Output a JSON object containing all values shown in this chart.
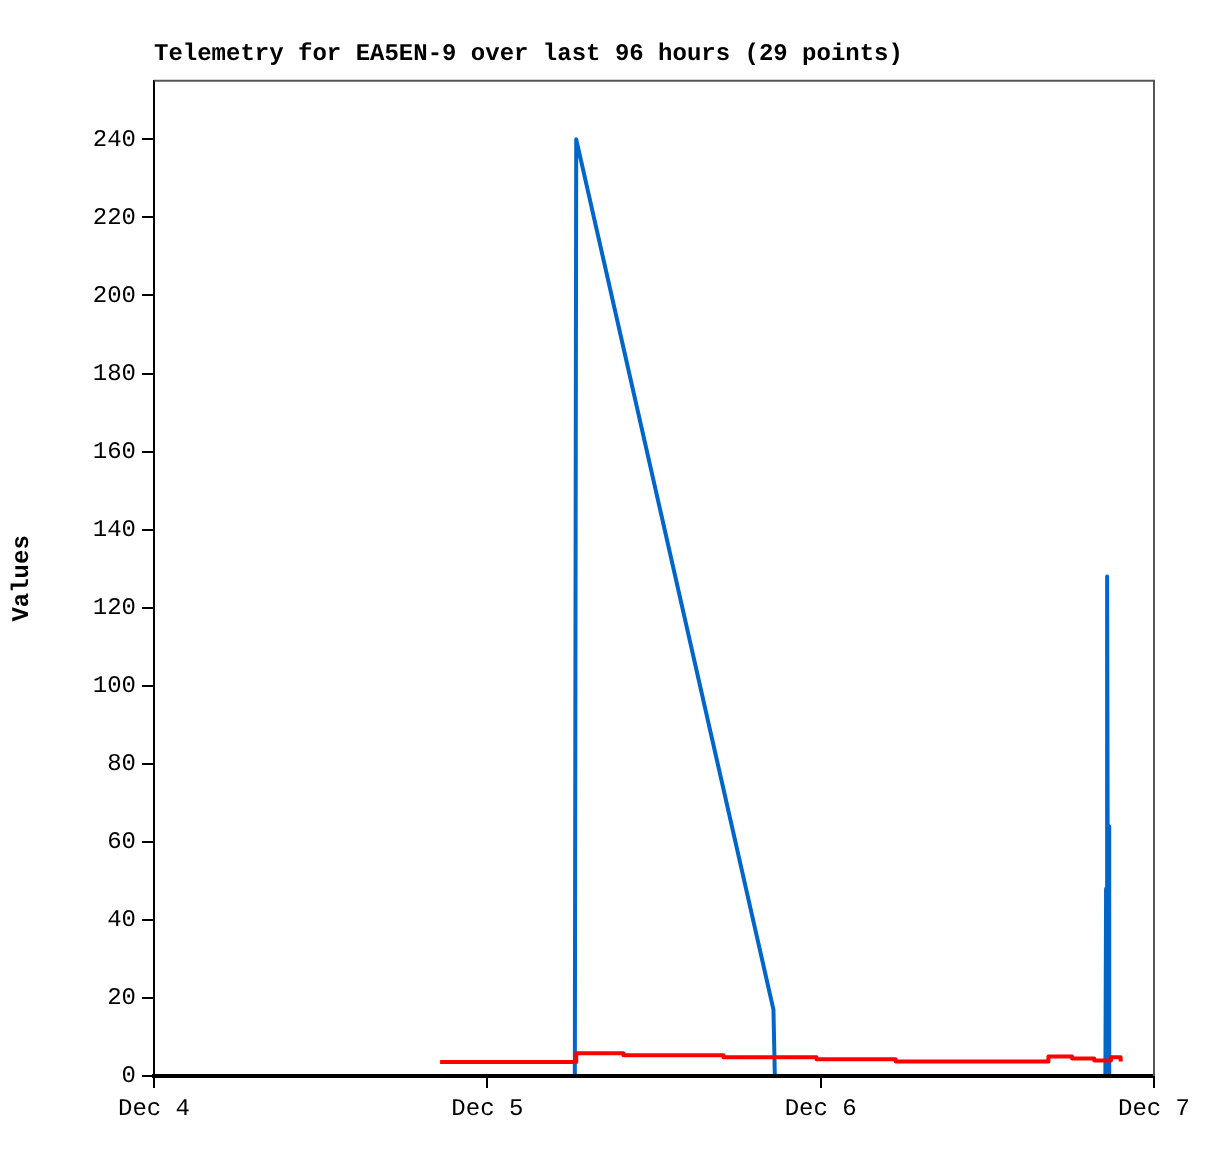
{
  "chart_data": {
    "type": "line",
    "title": "Telemetry for EA5EN-9 over last 96 hours (29 points)",
    "ylabel": "Values",
    "xlim": [
      "--12-04",
      "--12-07"
    ],
    "xticks": [
      {
        "value": "--12-04",
        "label": "Dec 4"
      },
      {
        "value": "--12-05",
        "label": "Dec 5"
      },
      {
        "value": "--12-06",
        "label": "Dec 6"
      },
      {
        "value": "--12-07",
        "label": "Dec 7"
      }
    ],
    "ylim": [
      0,
      255
    ],
    "yticks": [
      0,
      20,
      40,
      60,
      80,
      100,
      120,
      140,
      160,
      180,
      200,
      220,
      240
    ],
    "grid": false,
    "legend": false,
    "marker": "none",
    "line_style": "solid",
    "series": [
      {
        "color": "#000000",
        "x": [
          "--12-04T20:36",
          "--12-06T21:36"
        ],
        "values": [
          0,
          0
        ]
      },
      {
        "type": "step",
        "color": "#ff0000",
        "x": [
          "--12-04T20:36",
          "--12-05T06:24",
          "--12-05T09:48",
          "--12-05T17:00",
          "--12-05T23:42",
          "--12-06T05:24",
          "--12-06T16:24",
          "--12-06T18:06",
          "--12-06T19:42",
          "--12-06T20:54",
          "--12-06T21:36"
        ],
        "values": [
          3.6,
          5.8,
          5.3,
          4.8,
          4.3,
          3.7,
          5.0,
          4.5,
          4.0,
          4.8,
          3.7
        ]
      },
      {
        "color": "#0066cc",
        "x": [
          "--12-04T20:36",
          "--12-05T06:18",
          "--12-05T06:24",
          "--12-05T20:36",
          "--12-05T20:42",
          "--12-06T20:30",
          "--12-06T20:33",
          "--12-06T20:36",
          "--12-06T20:39",
          "--12-06T20:42",
          "--12-06T20:45",
          "--12-06T20:48",
          "--12-06T20:51",
          "--12-06T21:06"
        ],
        "values": [
          0,
          0,
          240,
          17,
          0,
          0,
          48,
          0,
          128,
          0,
          64,
          0,
          0,
          0
        ]
      }
    ]
  }
}
